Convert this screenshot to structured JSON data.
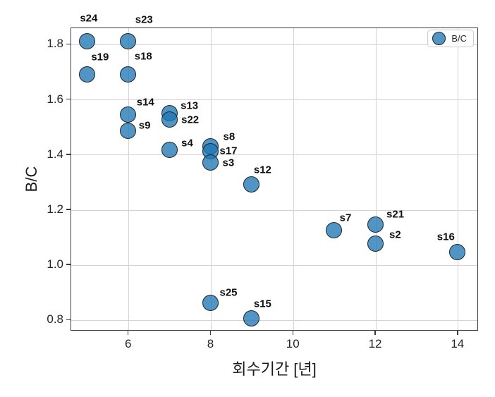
{
  "chart_data": {
    "type": "scatter",
    "title": "",
    "xlabel": "회수기간 [년]",
    "ylabel": "B/C",
    "legend": {
      "label": "B/C",
      "position": "upper-right"
    },
    "xlim": [
      4.6,
      14.5
    ],
    "ylim": [
      0.76,
      1.86
    ],
    "grid": true,
    "xticks": [
      {
        "value": 6,
        "label": "6"
      },
      {
        "value": 8,
        "label": "8"
      },
      {
        "value": 10,
        "label": "10"
      },
      {
        "value": 12,
        "label": "12"
      },
      {
        "value": 14,
        "label": "14"
      }
    ],
    "yticks": [
      {
        "value": 0.8,
        "label": "0.8"
      },
      {
        "value": 1.0,
        "label": "1.0"
      },
      {
        "value": 1.2,
        "label": "1.2"
      },
      {
        "value": 1.4,
        "label": "1.4"
      },
      {
        "value": 1.6,
        "label": "1.6"
      },
      {
        "value": 1.8,
        "label": "1.8"
      }
    ],
    "colors": {
      "marker_fill": "#1f77b4",
      "marker_alpha": 0.78,
      "marker_edge": "#1a2430",
      "grid": "#d4d4d4",
      "spine": "#3c3c3c",
      "text": "#262626"
    },
    "marker_diameter_px": 23,
    "series": [
      {
        "name": "B/C",
        "points": [
          {
            "id": "s24",
            "x": 5,
            "y": 1.81,
            "label_dx": -10,
            "label_dy": -33
          },
          {
            "id": "s23",
            "x": 6,
            "y": 1.81,
            "label_dx": 10,
            "label_dy": -31
          },
          {
            "id": "s19",
            "x": 5,
            "y": 1.69,
            "label_dx": 6,
            "label_dy": -24
          },
          {
            "id": "s18",
            "x": 6,
            "y": 1.69,
            "label_dx": 9,
            "label_dy": -25
          },
          {
            "id": "s14",
            "x": 6,
            "y": 1.545,
            "label_dx": 12,
            "label_dy": -17
          },
          {
            "id": "s9",
            "x": 6,
            "y": 1.485,
            "label_dx": 15,
            "label_dy": -8
          },
          {
            "id": "s13",
            "x": 7,
            "y": 1.55,
            "label_dx": 16,
            "label_dy": -10
          },
          {
            "id": "s22",
            "x": 7,
            "y": 1.525,
            "label_dx": 17,
            "label_dy": 0
          },
          {
            "id": "s4",
            "x": 7,
            "y": 1.415,
            "label_dx": 17,
            "label_dy": -10
          },
          {
            "id": "s8",
            "x": 8,
            "y": 1.43,
            "label_dx": 18,
            "label_dy": -13
          },
          {
            "id": "s17",
            "x": 8,
            "y": 1.41,
            "label_dx": 13,
            "label_dy": -1
          },
          {
            "id": "s3",
            "x": 8,
            "y": 1.37,
            "label_dx": 17,
            "label_dy": 0
          },
          {
            "id": "s12",
            "x": 9,
            "y": 1.29,
            "label_dx": 3,
            "label_dy": -21
          },
          {
            "id": "s7",
            "x": 11,
            "y": 1.125,
            "label_dx": 8,
            "label_dy": -17
          },
          {
            "id": "s21",
            "x": 12,
            "y": 1.145,
            "label_dx": 16,
            "label_dy": -15
          },
          {
            "id": "s2",
            "x": 12,
            "y": 1.075,
            "label_dx": 20,
            "label_dy": -13
          },
          {
            "id": "s16",
            "x": 14,
            "y": 1.045,
            "label_dx": -29,
            "label_dy": -22
          },
          {
            "id": "s25",
            "x": 8,
            "y": 0.86,
            "label_dx": 13,
            "label_dy": -15
          },
          {
            "id": "s15",
            "x": 9,
            "y": 0.805,
            "label_dx": 3,
            "label_dy": -20
          }
        ]
      }
    ]
  }
}
